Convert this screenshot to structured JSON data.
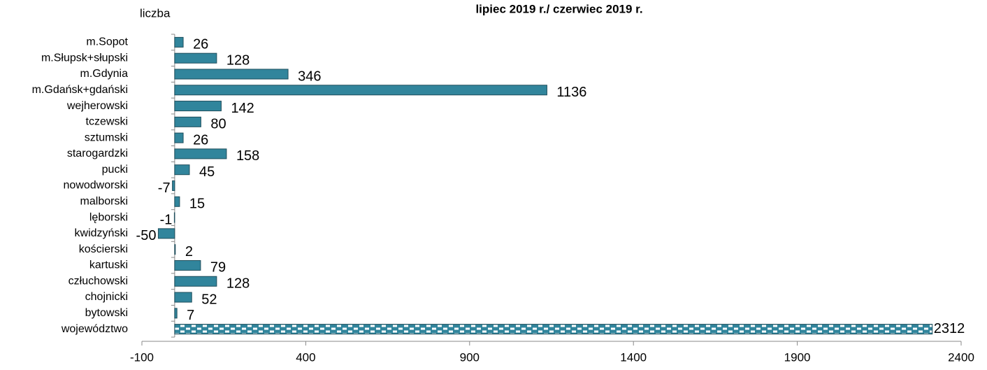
{
  "chart_data": {
    "type": "barh",
    "title": "lipiec 2019 r./ czerwiec 2019 r.",
    "xlabel": "liczba",
    "categories": [
      "m.Sopot",
      "m.Słupsk+słupski",
      "m.Gdynia",
      "m.Gdańsk+gdański",
      "wejherowski",
      "tczewski",
      "sztumski",
      "starogardzki",
      "pucki",
      "nowodworski",
      "malborski",
      "lęborski",
      "kwidzyński",
      "kościerski",
      "kartuski",
      "człuchowski",
      "chojnicki",
      "bytowski",
      "województwo"
    ],
    "values": [
      26,
      128,
      346,
      1136,
      142,
      80,
      26,
      158,
      45,
      -7,
      15,
      -1,
      -50,
      2,
      79,
      128,
      52,
      7,
      2312
    ],
    "color": "#31859c",
    "xlim": [
      -100,
      2400
    ],
    "xticks": [
      -100,
      400,
      900,
      1400,
      1900,
      2400
    ],
    "grid": false
  }
}
